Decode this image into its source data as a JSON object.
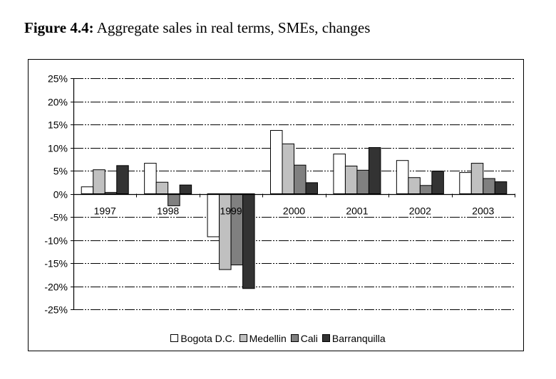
{
  "figure": {
    "label": "Figure 4.4:",
    "caption": " Aggregate sales in real terms, SMEs, changes"
  },
  "chart_data": {
    "type": "bar",
    "title": "Aggregate sales in real terms, SMEs, changes",
    "xlabel": "",
    "ylabel": "",
    "categories": [
      "1997",
      "1998",
      "1999",
      "2000",
      "2001",
      "2002",
      "2003"
    ],
    "series": [
      {
        "name": "Bogota D.C.",
        "color": "#ffffff",
        "values": [
          1.5,
          6.6,
          -9.3,
          13.7,
          8.6,
          7.2,
          4.6
        ]
      },
      {
        "name": "Medellin",
        "color": "#c0c0c0",
        "values": [
          5.2,
          2.5,
          -16.4,
          10.8,
          6.0,
          3.5,
          6.6
        ]
      },
      {
        "name": "Cali",
        "color": "#808080",
        "values": [
          0.3,
          -2.6,
          -15.4,
          6.2,
          5.1,
          1.8,
          3.3
        ]
      },
      {
        "name": "Barranquilla",
        "color": "#333333",
        "values": [
          6.1,
          1.9,
          -20.5,
          2.4,
          10.0,
          4.9,
          2.6
        ]
      }
    ],
    "ylim": [
      -25,
      25
    ],
    "yticks": [
      25,
      20,
      15,
      10,
      5,
      0,
      -5,
      -10,
      -15,
      -20,
      -25
    ],
    "ytick_labels": [
      "25%",
      "20%",
      "15%",
      "10%",
      "5%",
      "0%",
      "-5%",
      "-10%",
      "-15%",
      "-20%",
      "-25%"
    ],
    "grid": true,
    "legend_position": "bottom"
  }
}
